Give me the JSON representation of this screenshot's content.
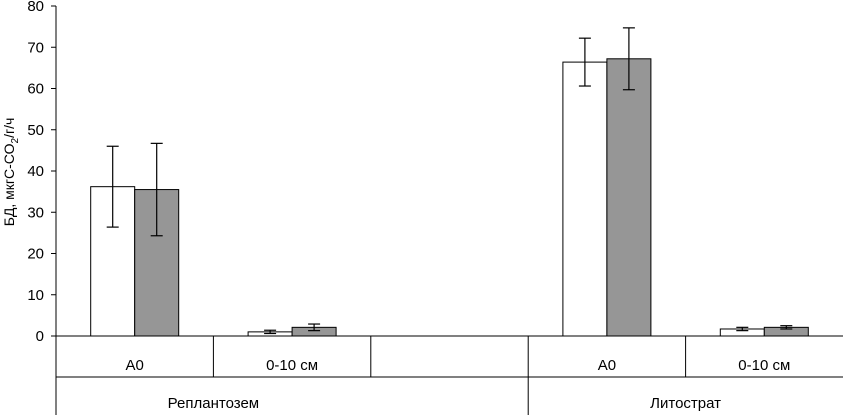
{
  "chart_data": {
    "type": "bar",
    "ylabel": "БД, мкгС-СО",
    "ylabel_subscript": "2",
    "ylabel_suffix": "/г/ч",
    "ylim": [
      0,
      80
    ],
    "yticks": [
      "0",
      "10",
      "20",
      "30",
      "40",
      "50",
      "60",
      "70",
      "80"
    ],
    "grid": false,
    "groups": [
      {
        "label": "Реплантозем",
        "categories": [
          "А0",
          "0-10 см"
        ]
      },
      {
        "label": "Литострат",
        "categories": [
          "А0",
          "0-10 см"
        ]
      }
    ],
    "series": [
      {
        "color": "#ffffff",
        "values": [
          36.2,
          1.0,
          66.4,
          1.7
        ],
        "errors": [
          9.8,
          0.4,
          5.8,
          0.4
        ]
      },
      {
        "color": "#969696",
        "values": [
          35.5,
          2.1,
          67.2,
          2.1
        ],
        "errors": [
          11.2,
          0.8,
          7.5,
          0.4
        ]
      }
    ]
  }
}
